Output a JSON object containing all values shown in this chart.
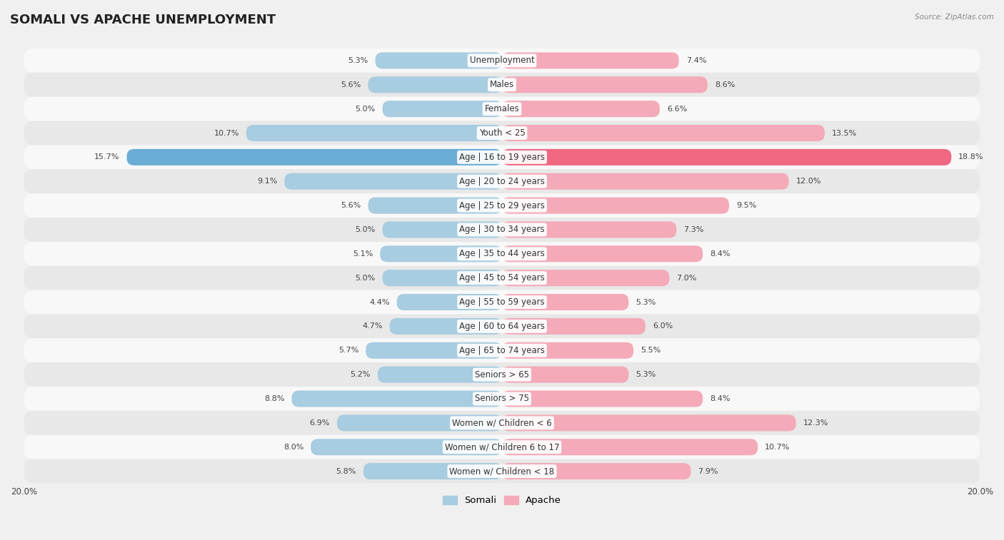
{
  "title": "SOMALI VS APACHE UNEMPLOYMENT",
  "source": "Source: ZipAtlas.com",
  "categories": [
    "Unemployment",
    "Males",
    "Females",
    "Youth < 25",
    "Age | 16 to 19 years",
    "Age | 20 to 24 years",
    "Age | 25 to 29 years",
    "Age | 30 to 34 years",
    "Age | 35 to 44 years",
    "Age | 45 to 54 years",
    "Age | 55 to 59 years",
    "Age | 60 to 64 years",
    "Age | 65 to 74 years",
    "Seniors > 65",
    "Seniors > 75",
    "Women w/ Children < 6",
    "Women w/ Children 6 to 17",
    "Women w/ Children < 18"
  ],
  "somali_values": [
    5.3,
    5.6,
    5.0,
    10.7,
    15.7,
    9.1,
    5.6,
    5.0,
    5.1,
    5.0,
    4.4,
    4.7,
    5.7,
    5.2,
    8.8,
    6.9,
    8.0,
    5.8
  ],
  "apache_values": [
    7.4,
    8.6,
    6.6,
    13.5,
    18.8,
    12.0,
    9.5,
    7.3,
    8.4,
    7.0,
    5.3,
    6.0,
    5.5,
    5.3,
    8.4,
    12.3,
    10.7,
    7.9
  ],
  "somali_color": "#a8cce0",
  "apache_color": "#f4aab8",
  "somali_highlight_color": "#6aaed6",
  "apache_highlight_color": "#f06882",
  "axis_limit": 20.0,
  "bg_color": "#f0f0f0",
  "row_color_odd": "#f8f8f8",
  "row_color_even": "#e8e8e8",
  "title_fontsize": 13,
  "label_fontsize": 8.5,
  "value_fontsize": 8,
  "legend_fontsize": 9.5,
  "title_color": "#222222",
  "source_color": "#888888",
  "value_color": "#444444",
  "category_color": "#333333"
}
